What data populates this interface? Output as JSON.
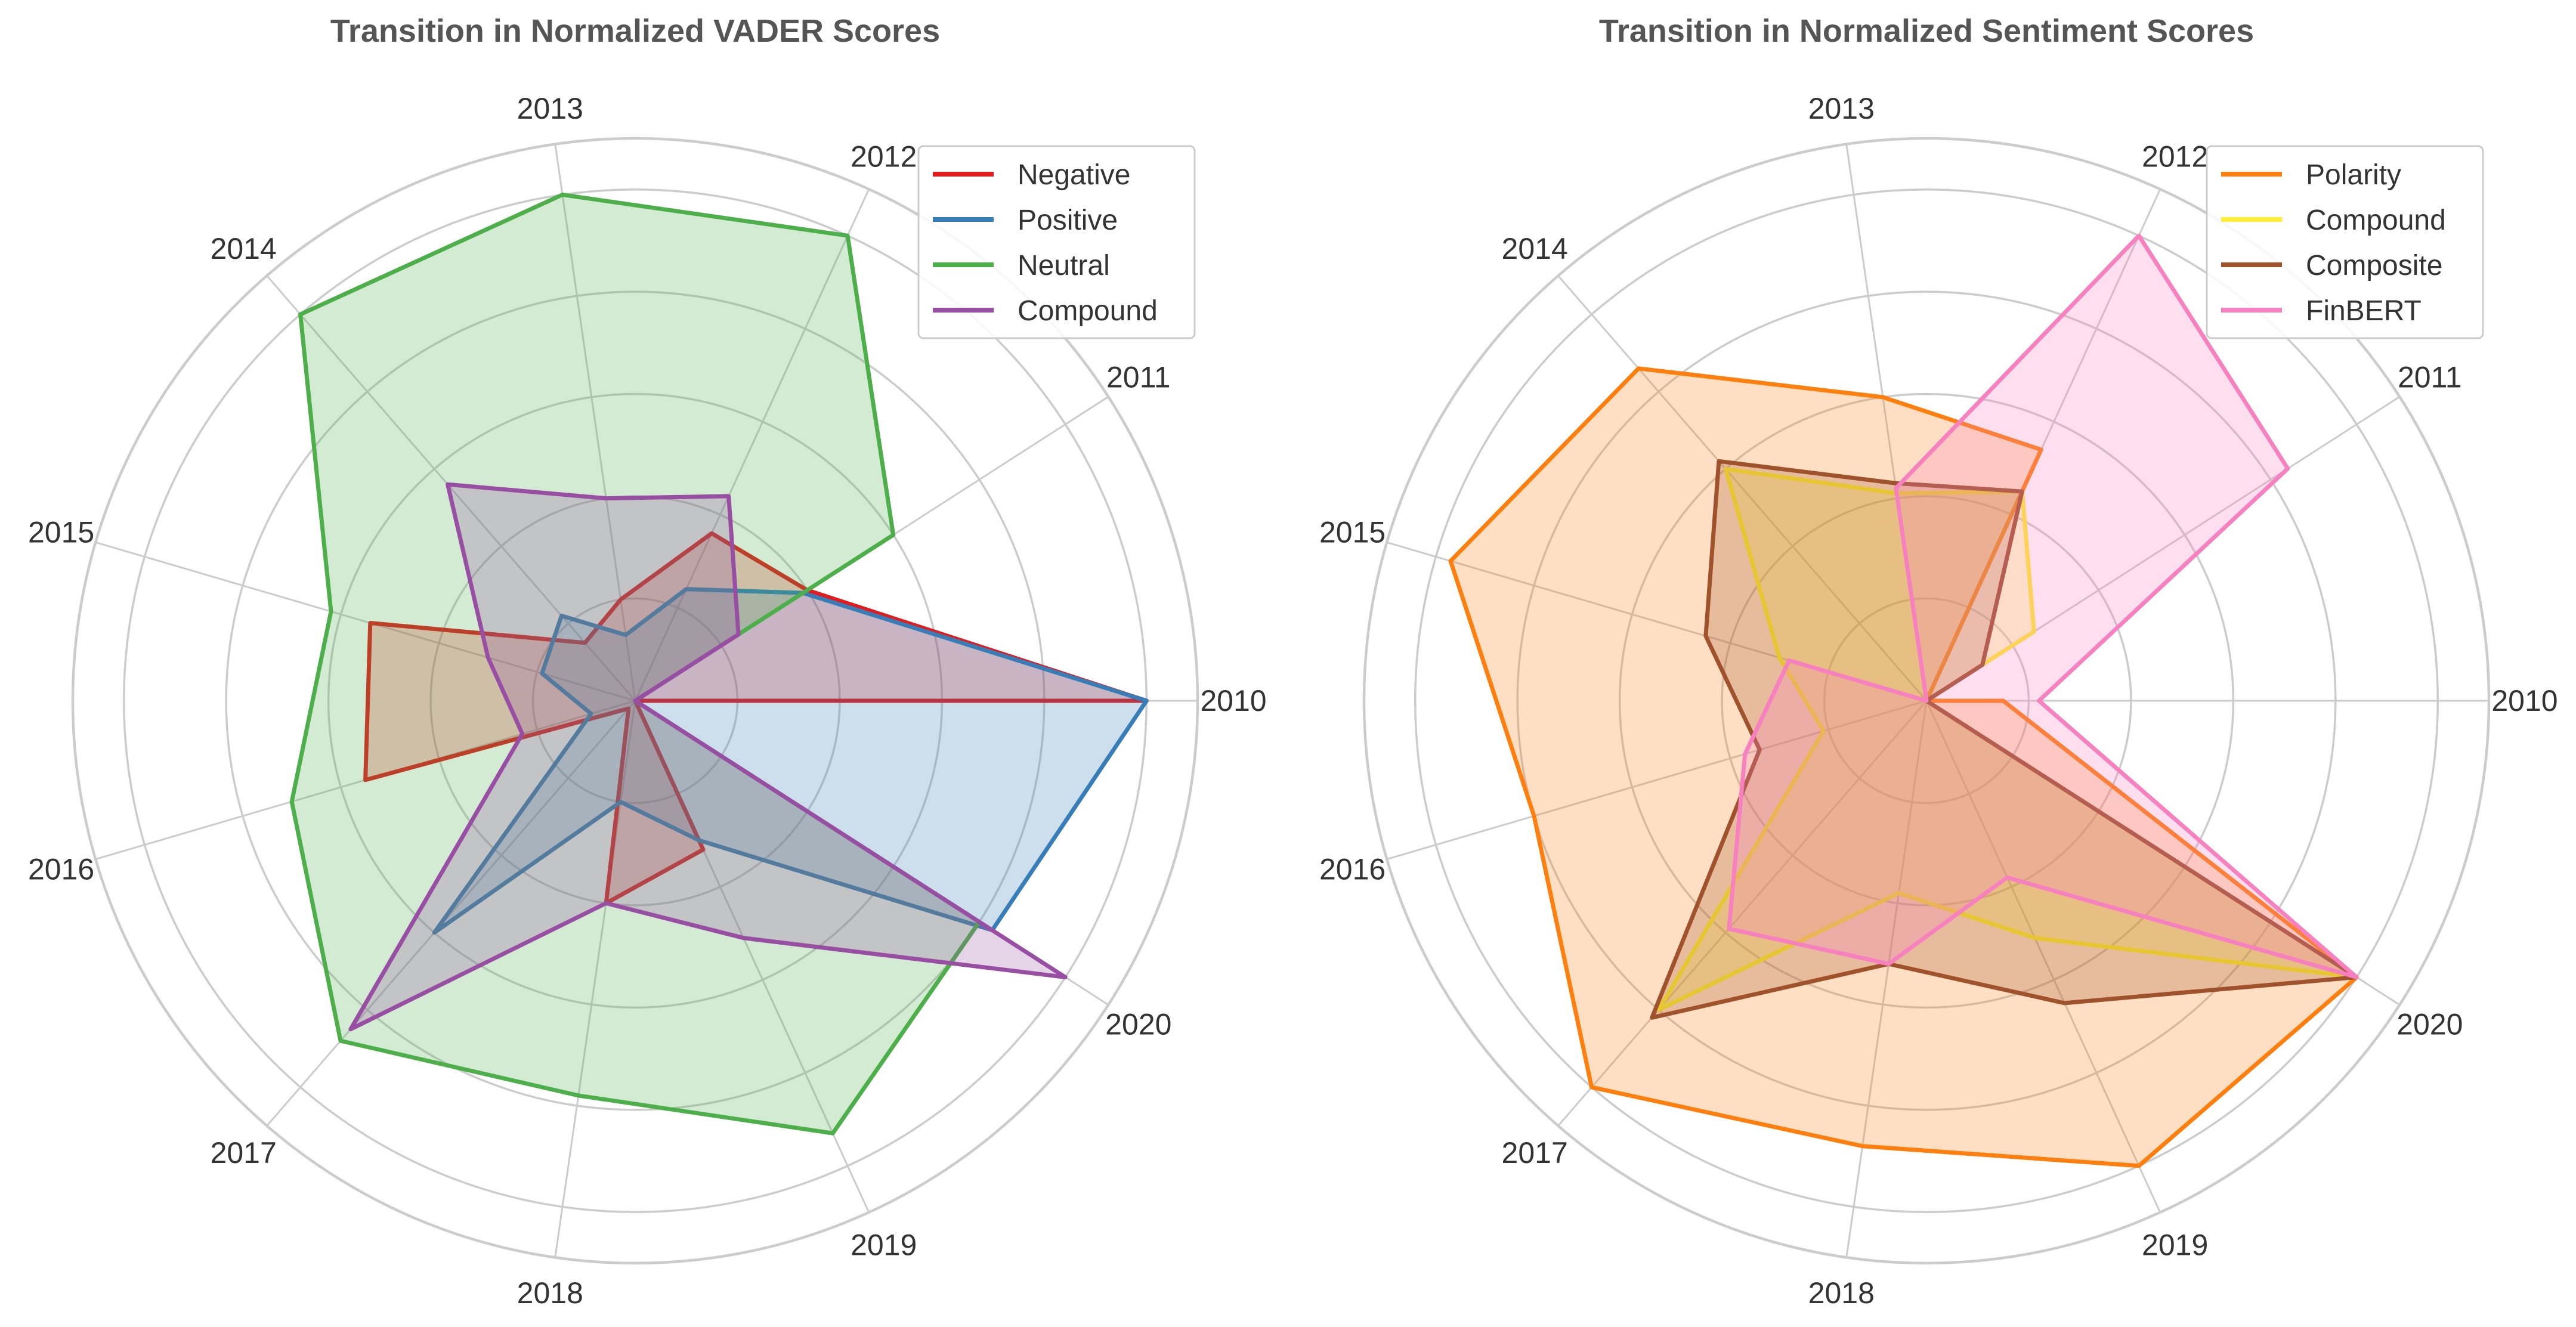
{
  "chart_data": [
    {
      "type": "radar",
      "title": "Transition in Normalized VADER Scores",
      "categories": [
        "2010",
        "2011",
        "2012",
        "2013",
        "2014",
        "2015",
        "2016",
        "2017",
        "2018",
        "2019",
        "2020"
      ],
      "rlim": [
        0,
        1.1
      ],
      "legend_position": "top-right",
      "series": [
        {
          "name": "Negative",
          "color": "#e41a1c",
          "values": [
            1.0,
            0.4,
            0.36,
            0.2,
            0.15,
            0.54,
            0.55,
            0.02,
            0.4,
            0.32,
            0.0
          ]
        },
        {
          "name": "Positive",
          "color": "#377eb8",
          "values": [
            1.0,
            0.39,
            0.24,
            0.13,
            0.22,
            0.19,
            0.09,
            0.6,
            0.2,
            0.3,
            0.83
          ]
        },
        {
          "name": "Neutral",
          "color": "#4daf4a",
          "values": [
            0.0,
            0.6,
            1.0,
            1.0,
            1.0,
            0.62,
            0.7,
            0.88,
            0.78,
            0.93,
            0.8
          ]
        },
        {
          "name": "Compound",
          "color": "#984ea3",
          "values": [
            0.0,
            0.24,
            0.44,
            0.4,
            0.56,
            0.3,
            0.23,
            0.85,
            0.4,
            0.51,
            1.0
          ]
        }
      ]
    },
    {
      "type": "radar",
      "title": "Transition in Normalized Sentiment Scores",
      "categories": [
        "2010",
        "2011",
        "2012",
        "2013",
        "2014",
        "2015",
        "2016",
        "2017",
        "2018",
        "2019",
        "2020"
      ],
      "rlim": [
        0,
        1.1
      ],
      "legend_position": "top-right",
      "series": [
        {
          "name": "Polarity",
          "color": "#ff7f0e",
          "values": [
            0.15,
            0.0,
            0.54,
            0.6,
            0.86,
            0.97,
            0.8,
            1.0,
            0.88,
            1.0,
            1.0
          ]
        },
        {
          "name": "Compound",
          "color": "#ffee33",
          "values": [
            0.0,
            0.25,
            0.45,
            0.41,
            0.6,
            0.3,
            0.21,
            0.8,
            0.38,
            0.51,
            1.0
          ]
        },
        {
          "name": "Composite",
          "color": "#a0522d",
          "values": [
            0.0,
            0.13,
            0.45,
            0.43,
            0.62,
            0.45,
            0.34,
            0.82,
            0.52,
            0.65,
            1.0
          ]
        },
        {
          "name": "FinBERT",
          "color": "#f781bf",
          "values": [
            0.22,
            0.84,
            1.0,
            0.42,
            0.0,
            0.28,
            0.37,
            0.59,
            0.52,
            0.38,
            1.0
          ]
        }
      ]
    }
  ]
}
